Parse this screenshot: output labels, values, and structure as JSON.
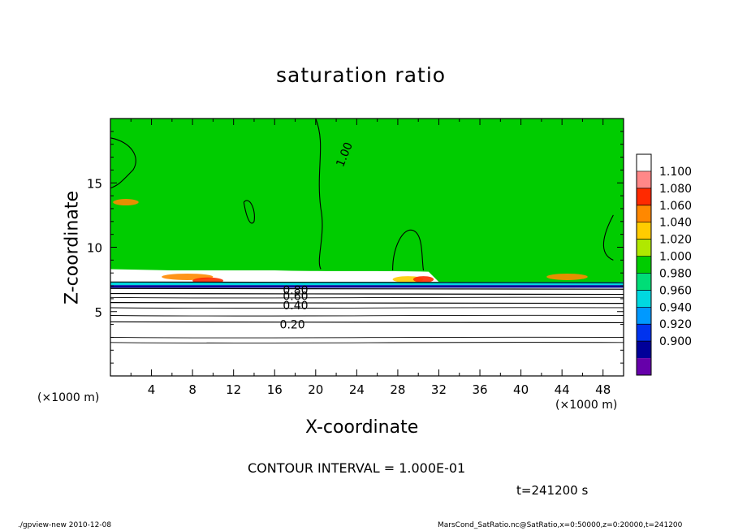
{
  "chart_data": {
    "type": "heatmap",
    "title": "saturation ratio",
    "xlabel": "X-coordinate",
    "ylabel": "Z-coordinate",
    "x_units": "(×1000 m)",
    "y_units": "(×1000 m)",
    "xlim": [
      0,
      50
    ],
    "ylim": [
      0,
      20
    ],
    "x_ticks": [
      "4",
      "8",
      "12",
      "16",
      "20",
      "24",
      "28",
      "32",
      "36",
      "40",
      "44",
      "48"
    ],
    "y_ticks": [
      "5",
      "10",
      "15"
    ],
    "colorbar": {
      "levels": [
        "1.100",
        "1.080",
        "1.060",
        "1.040",
        "1.020",
        "1.000",
        "0.980",
        "0.960",
        "0.940",
        "0.920",
        "0.900"
      ],
      "colors": [
        "#ffffff",
        "#ff8888",
        "#ff2a00",
        "#ff8800",
        "#ffcc00",
        "#b0e800",
        "#00cc00",
        "#00dd77",
        "#00d8e0",
        "#0099ff",
        "#0033ee",
        "#000099",
        "#6600aa"
      ]
    },
    "contour_labels": [
      "1.00",
      "0.80",
      "0.60",
      "0.40",
      "0.20"
    ],
    "field": {
      "upper_value": 1.0,
      "lower_profile": [
        {
          "z": 7.3,
          "value": 0.9
        },
        {
          "z": 6.8,
          "value": 0.8
        },
        {
          "z": 6.4,
          "value": 0.6
        },
        {
          "z": 5.7,
          "value": 0.4
        },
        {
          "z": 4.2,
          "value": 0.2
        }
      ]
    }
  },
  "annotations": {
    "contour_interval": "CONTOUR INTERVAL = 1.000E-01",
    "time": "t=241200 s",
    "footer_left": "./gpview-new   2010-12-08",
    "footer_right": "MarsCond_SatRatio.nc@SatRatio,x=0:50000,z=0:20000,t=241200"
  }
}
